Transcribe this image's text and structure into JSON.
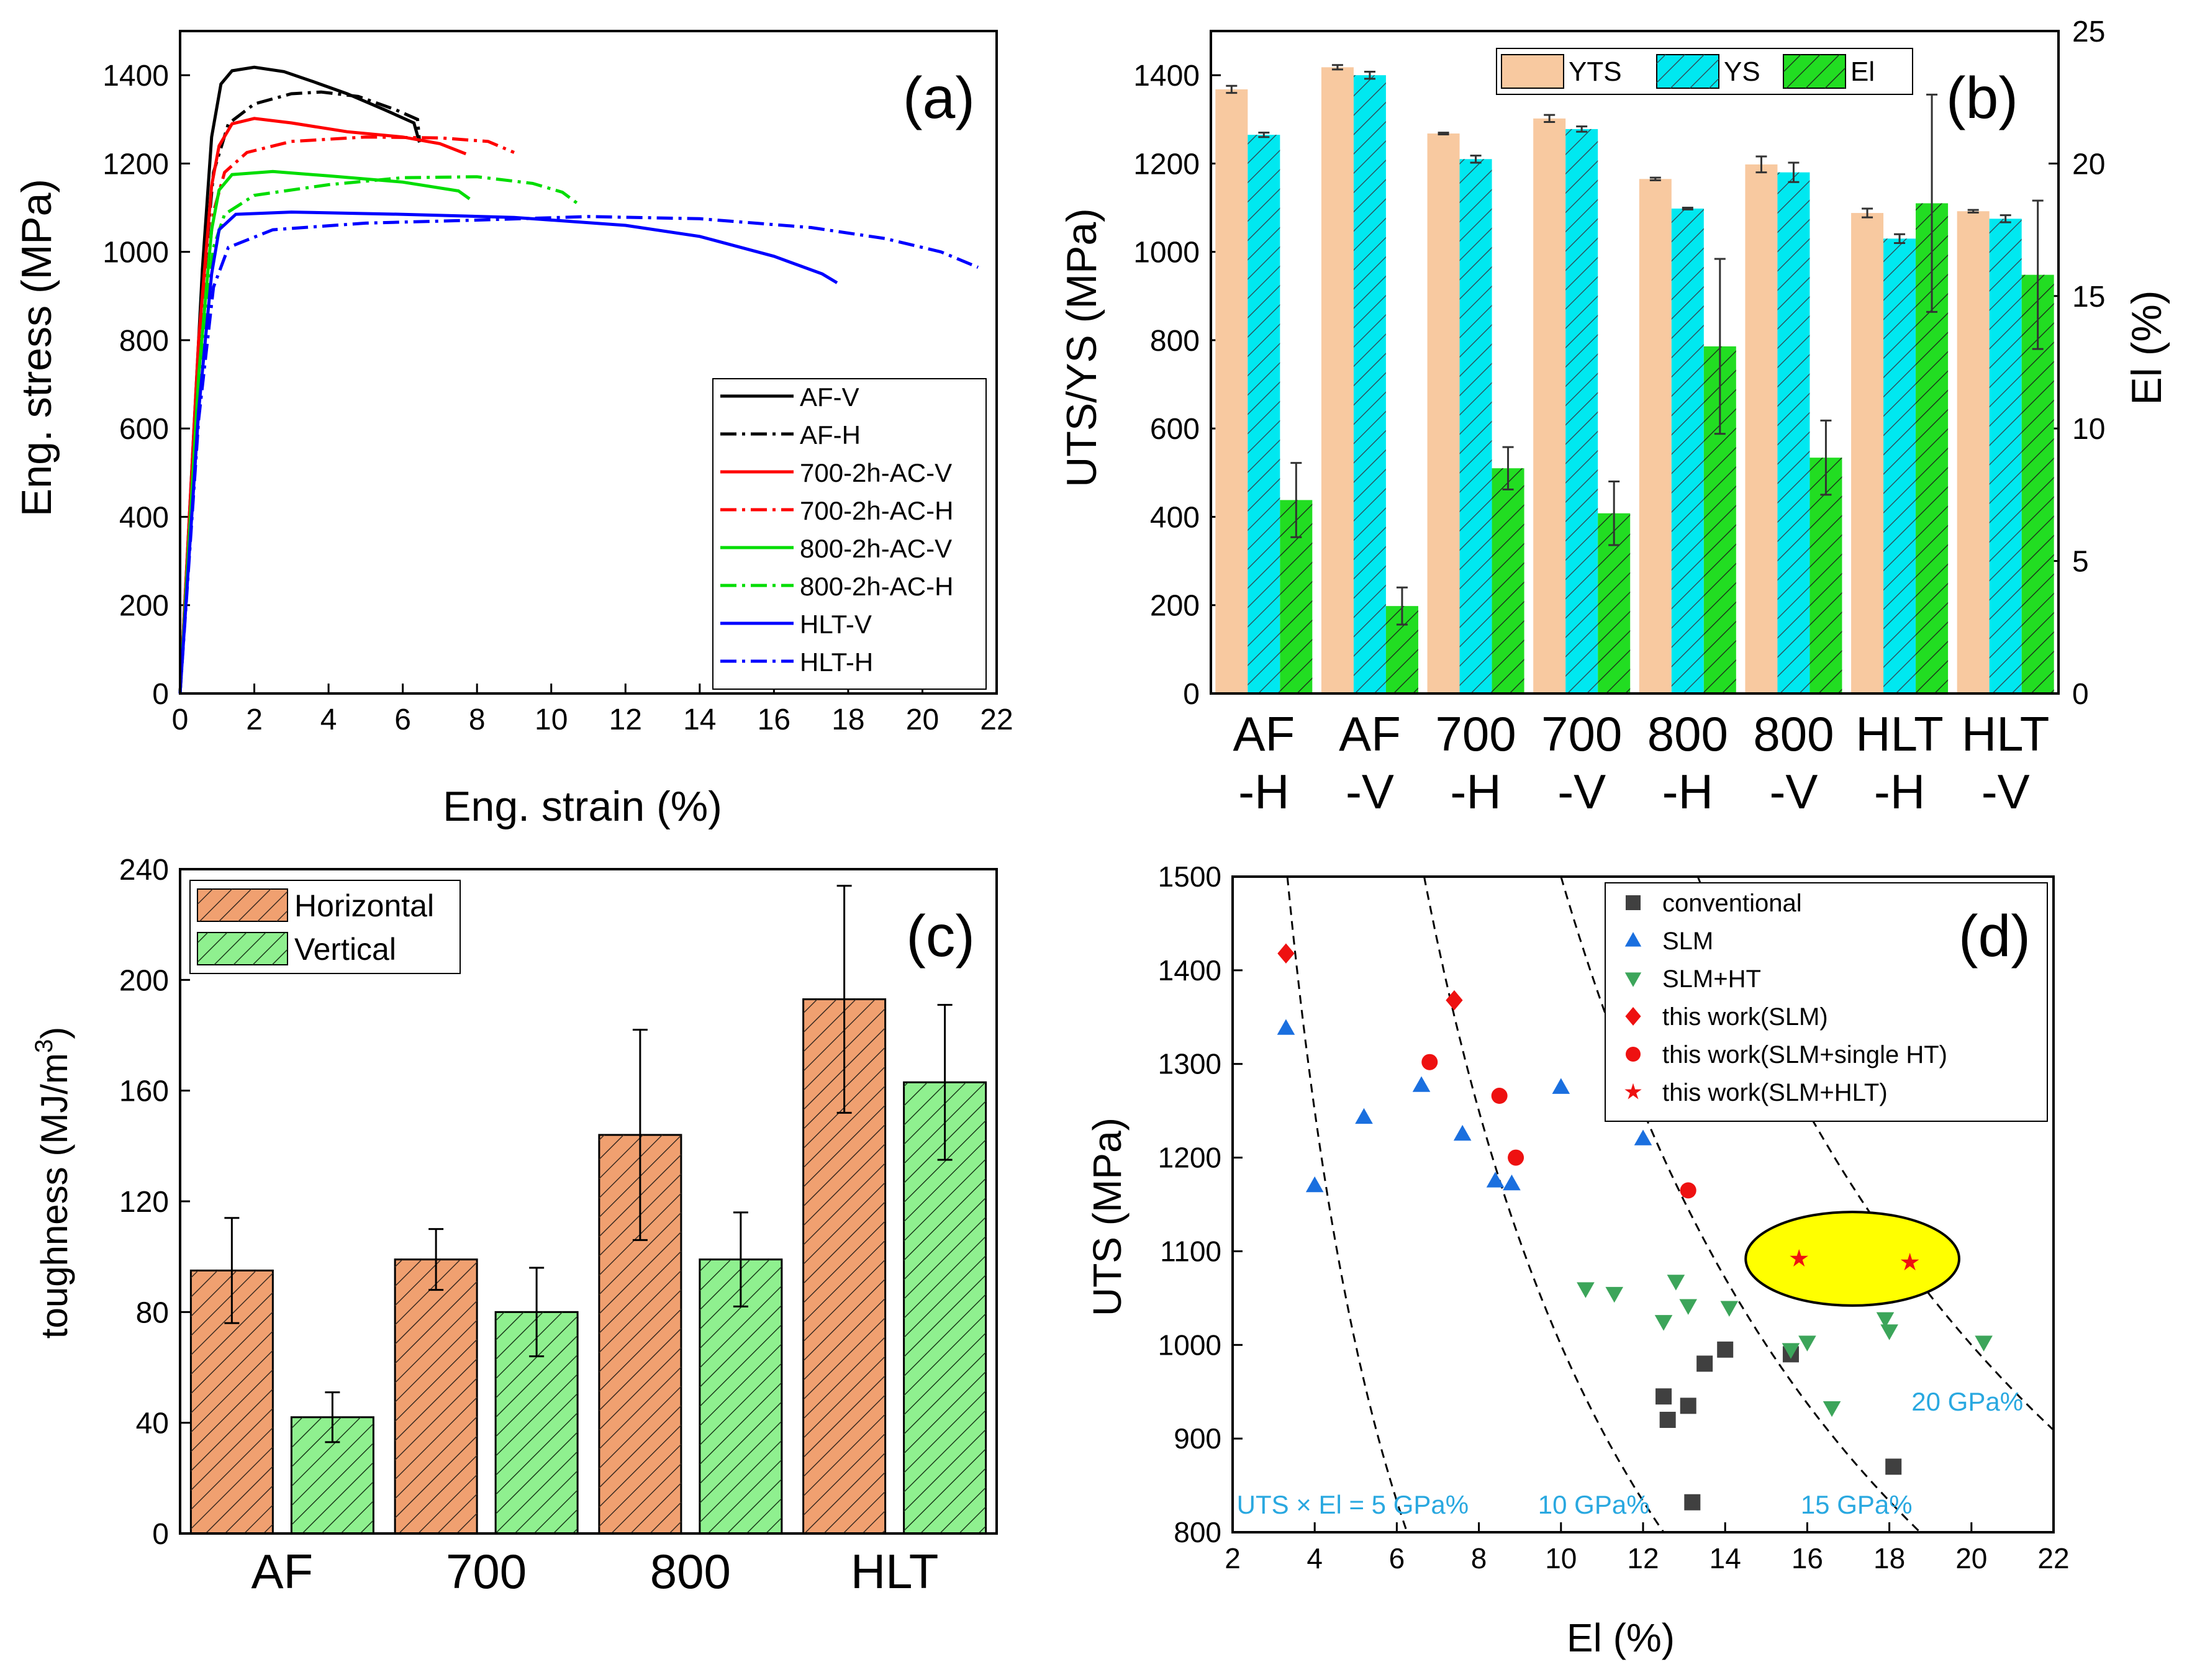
{
  "chart_data": [
    {
      "id": "a",
      "type": "line",
      "panel_label": "(a)",
      "xlabel": "Eng. strain (%)",
      "ylabel": "Eng. stress (MPa)",
      "xlim": [
        0,
        22
      ],
      "ylim": [
        0,
        1500
      ],
      "xticks": [
        0,
        2,
        4,
        6,
        8,
        10,
        12,
        14,
        16,
        18,
        20,
        22
      ],
      "yticks": [
        0,
        200,
        400,
        600,
        800,
        1000,
        1200,
        1400
      ],
      "legend_position": "bottom-right",
      "series": [
        {
          "name": "AF-V",
          "color": "#000000",
          "dash": false,
          "points": [
            [
              0,
              0
            ],
            [
              0.3,
              480
            ],
            [
              0.6,
              960
            ],
            [
              0.85,
              1260
            ],
            [
              1.1,
              1380
            ],
            [
              1.4,
              1410
            ],
            [
              2,
              1418
            ],
            [
              2.8,
              1408
            ],
            [
              3.6,
              1385
            ],
            [
              4.5,
              1358
            ],
            [
              5.5,
              1322
            ],
            [
              6.3,
              1292
            ],
            [
              6.45,
              1248
            ]
          ]
        },
        {
          "name": "AF-H",
          "color": "#000000",
          "dash": true,
          "points": [
            [
              0,
              0
            ],
            [
              0.3,
              450
            ],
            [
              0.6,
              900
            ],
            [
              0.9,
              1180
            ],
            [
              1.3,
              1290
            ],
            [
              2,
              1335
            ],
            [
              3,
              1358
            ],
            [
              3.8,
              1362
            ],
            [
              4.8,
              1352
            ],
            [
              5.8,
              1322
            ],
            [
              6.4,
              1300
            ],
            [
              6.45,
              1252
            ]
          ]
        },
        {
          "name": "700-2h-AC-V",
          "color": "#ff0000",
          "dash": false,
          "points": [
            [
              0,
              0
            ],
            [
              0.5,
              800
            ],
            [
              0.85,
              1150
            ],
            [
              1.05,
              1240
            ],
            [
              1.4,
              1290
            ],
            [
              2,
              1302
            ],
            [
              3,
              1292
            ],
            [
              4.5,
              1272
            ],
            [
              6,
              1260
            ],
            [
              7,
              1245
            ],
            [
              7.7,
              1222
            ]
          ]
        },
        {
          "name": "700-2h-AC-H",
          "color": "#ff0000",
          "dash": true,
          "points": [
            [
              0,
              0
            ],
            [
              0.5,
              760
            ],
            [
              0.9,
              1090
            ],
            [
              1.2,
              1180
            ],
            [
              1.8,
              1225
            ],
            [
              3,
              1250
            ],
            [
              5,
              1260
            ],
            [
              7,
              1258
            ],
            [
              8.3,
              1250
            ],
            [
              9,
              1225
            ]
          ]
        },
        {
          "name": "800-2h-AC-V",
          "color": "#00dd00",
          "dash": false,
          "points": [
            [
              0,
              0
            ],
            [
              0.5,
              720
            ],
            [
              0.85,
              1050
            ],
            [
              1.05,
              1140
            ],
            [
              1.4,
              1175
            ],
            [
              2.5,
              1182
            ],
            [
              4,
              1172
            ],
            [
              6,
              1158
            ],
            [
              7.5,
              1138
            ],
            [
              7.8,
              1120
            ]
          ]
        },
        {
          "name": "800-2h-AC-H",
          "color": "#00dd00",
          "dash": true,
          "points": [
            [
              0,
              0
            ],
            [
              0.5,
              700
            ],
            [
              0.9,
              1010
            ],
            [
              1.2,
              1085
            ],
            [
              2,
              1128
            ],
            [
              4,
              1152
            ],
            [
              6,
              1168
            ],
            [
              8,
              1170
            ],
            [
              9.5,
              1155
            ],
            [
              10.3,
              1135
            ],
            [
              10.7,
              1110
            ]
          ]
        },
        {
          "name": "HLT-V",
          "color": "#0000ff",
          "dash": false,
          "points": [
            [
              0,
              0
            ],
            [
              0.5,
              640
            ],
            [
              0.85,
              950
            ],
            [
              1.05,
              1050
            ],
            [
              1.5,
              1085
            ],
            [
              3,
              1090
            ],
            [
              6,
              1085
            ],
            [
              9,
              1078
            ],
            [
              12,
              1060
            ],
            [
              14,
              1035
            ],
            [
              16,
              990
            ],
            [
              17.3,
              950
            ],
            [
              17.7,
              930
            ]
          ]
        },
        {
          "name": "HLT-H",
          "color": "#0000ff",
          "dash": true,
          "points": [
            [
              0,
              0
            ],
            [
              0.5,
              620
            ],
            [
              0.9,
              920
            ],
            [
              1.3,
              1010
            ],
            [
              2.5,
              1050
            ],
            [
              5,
              1065
            ],
            [
              8,
              1072
            ],
            [
              11,
              1080
            ],
            [
              14,
              1075
            ],
            [
              17,
              1055
            ],
            [
              19,
              1030
            ],
            [
              20.5,
              1000
            ],
            [
              21.5,
              965
            ]
          ]
        }
      ]
    },
    {
      "id": "b",
      "type": "bar",
      "panel_label": "(b)",
      "ylabel": "UTS/YS (MPa)",
      "y2label": "El (%)",
      "ylim": [
        0,
        1500
      ],
      "y2lim": [
        0,
        25
      ],
      "yticks": [
        0,
        200,
        400,
        600,
        800,
        1000,
        1200,
        1400
      ],
      "y2ticks": [
        0,
        5,
        10,
        15,
        20,
        25
      ],
      "legend_position": "top",
      "categories": [
        "AF\n-H",
        "AF\n-V",
        "700\n-H",
        "700\n-V",
        "800\n-H",
        "800\n-V",
        "HLT\n-H",
        "HLT\n-V"
      ],
      "category_lines": [
        [
          "AF",
          "-H"
        ],
        [
          "AF",
          "-V"
        ],
        [
          "700",
          "-H"
        ],
        [
          "700",
          "-V"
        ],
        [
          "800",
          "-H"
        ],
        [
          "800",
          "-V"
        ],
        [
          "HLT",
          "-H"
        ],
        [
          "HLT",
          "-V"
        ]
      ],
      "series": [
        {
          "name": "YTS",
          "axis": "left",
          "color": "#f8c9a0",
          "hatch": false,
          "values": [
            1368,
            1418,
            1268,
            1302,
            1165,
            1198,
            1088,
            1092
          ],
          "errors": [
            8,
            5,
            2,
            8,
            3,
            18,
            10,
            3
          ]
        },
        {
          "name": "YS",
          "axis": "left",
          "color": "#00e8f0",
          "hatch": true,
          "values": [
            1265,
            1400,
            1210,
            1278,
            1098,
            1180,
            1030,
            1075
          ],
          "errors": [
            5,
            8,
            8,
            6,
            2,
            22,
            10,
            8
          ]
        },
        {
          "name": "El",
          "axis": "right",
          "color": "#22dd22",
          "hatch": true,
          "values": [
            7.3,
            3.3,
            8.5,
            6.8,
            13.1,
            8.9,
            18.5,
            15.8
          ],
          "errors": [
            1.4,
            0.7,
            0.8,
            1.2,
            3.3,
            1.4,
            4.1,
            2.8
          ]
        }
      ]
    },
    {
      "id": "c",
      "type": "bar",
      "panel_label": "(c)",
      "ylabel": "toughness (MJ/m",
      "ylabel_sup": "3",
      "ylabel_end": ")",
      "ylim": [
        0,
        240
      ],
      "yticks": [
        0,
        40,
        80,
        120,
        160,
        200,
        240
      ],
      "legend_position": "top-left",
      "categories": [
        "AF",
        "700",
        "800",
        "HLT"
      ],
      "series": [
        {
          "name": "Horizontal",
          "color": "#f0a070",
          "values": [
            95,
            99,
            144,
            193
          ],
          "errors": [
            19,
            11,
            38,
            41
          ]
        },
        {
          "name": "Vertical",
          "color": "#8ff08f",
          "values": [
            42,
            80,
            99,
            163
          ],
          "errors": [
            9,
            16,
            17,
            28
          ]
        }
      ]
    },
    {
      "id": "d",
      "type": "scatter",
      "panel_label": "(d)",
      "xlabel": "El (%)",
      "ylabel": "UTS (MPa)",
      "xlim": [
        2,
        22
      ],
      "ylim": [
        800,
        1500
      ],
      "xticks": [
        2,
        4,
        6,
        8,
        10,
        12,
        14,
        16,
        18,
        20,
        22
      ],
      "yticks": [
        800,
        900,
        1000,
        1100,
        1200,
        1300,
        1400,
        1500
      ],
      "legend_position": "top-right",
      "series": [
        {
          "name": "conventional",
          "marker": "square",
          "color": "#404040",
          "points": [
            [
              12.5,
              945
            ],
            [
              12.6,
              920
            ],
            [
              13.1,
              935
            ],
            [
              13.5,
              980
            ],
            [
              14,
              995
            ],
            [
              13.2,
              832
            ],
            [
              15.6,
              990
            ],
            [
              18.1,
              870
            ]
          ]
        },
        {
          "name": "SLM",
          "marker": "triangle-up",
          "color": "#1a6fdf",
          "points": [
            [
              3.3,
              1338
            ],
            [
              4,
              1170
            ],
            [
              5.2,
              1243
            ],
            [
              6.6,
              1277
            ],
            [
              7.6,
              1225
            ],
            [
              8.4,
              1175
            ],
            [
              8.8,
              1172
            ],
            [
              10,
              1275
            ],
            [
              12,
              1220
            ]
          ]
        },
        {
          "name": "SLM+HT",
          "marker": "triangle-down",
          "color": "#3ca55a",
          "points": [
            [
              10.6,
              1060
            ],
            [
              11.3,
              1055
            ],
            [
              12.5,
              1025
            ],
            [
              12.8,
              1068
            ],
            [
              13.1,
              1042
            ],
            [
              14.1,
              1040
            ],
            [
              15.6,
              995
            ],
            [
              16,
              1003
            ],
            [
              16.6,
              933
            ],
            [
              17.9,
              1028
            ],
            [
              18,
              1015
            ],
            [
              20.3,
              1003
            ]
          ]
        },
        {
          "name": "this work(SLM)",
          "marker": "diamond",
          "color": "#ee1111",
          "points": [
            [
              3.3,
              1418
            ],
            [
              7.4,
              1368
            ]
          ]
        },
        {
          "name": "this work(SLM+single HT)",
          "marker": "circle",
          "color": "#ee1111",
          "points": [
            [
              6.8,
              1302
            ],
            [
              8.5,
              1266
            ],
            [
              8.9,
              1200
            ],
            [
              13.1,
              1165
            ]
          ]
        },
        {
          "name": "this work(SLM+HLT)",
          "marker": "star",
          "color": "#ee1111",
          "points": [
            [
              15.8,
              1092
            ],
            [
              18.5,
              1088
            ]
          ]
        }
      ],
      "iso_curves": [
        {
          "product": 5000,
          "label": "UTS × El = 5 GPa%"
        },
        {
          "product": 10000,
          "label": "10 GPa%"
        },
        {
          "product": 15000,
          "label": "15 GPa%"
        },
        {
          "product": 20000,
          "label": "20 GPa%"
        }
      ],
      "highlight_ellipse": {
        "center": [
          17.1,
          1092
        ],
        "radius": [
          2.6,
          50
        ],
        "color": "#ffff00"
      }
    }
  ]
}
